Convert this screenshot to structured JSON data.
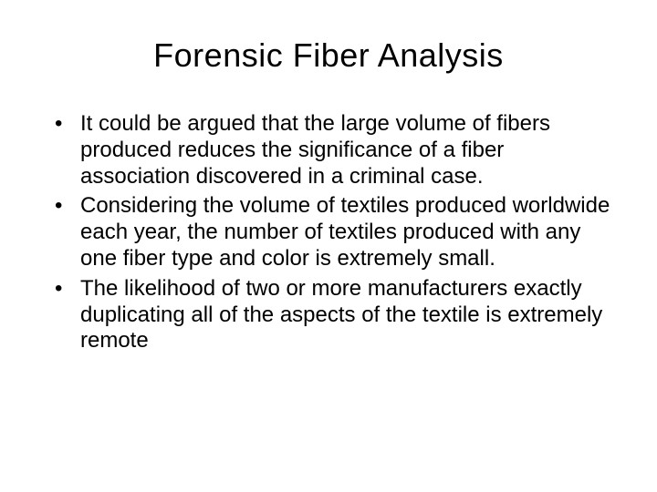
{
  "slide": {
    "title": "Forensic Fiber Analysis",
    "bullets": [
      "It could be argued that the large volume of fibers produced reduces the significance of a fiber association discovered in a criminal case.",
      "Considering the volume of textiles produced worldwide each year, the number of textiles produced with any one fiber type and color is extremely small.",
      "The likelihood of two or more manufacturers exactly duplicating all of the aspects of the textile is extremely remote"
    ]
  },
  "style": {
    "background_color": "#ffffff",
    "text_color": "#000000",
    "title_fontsize": 36,
    "body_fontsize": 24,
    "font_family": "Arial"
  }
}
